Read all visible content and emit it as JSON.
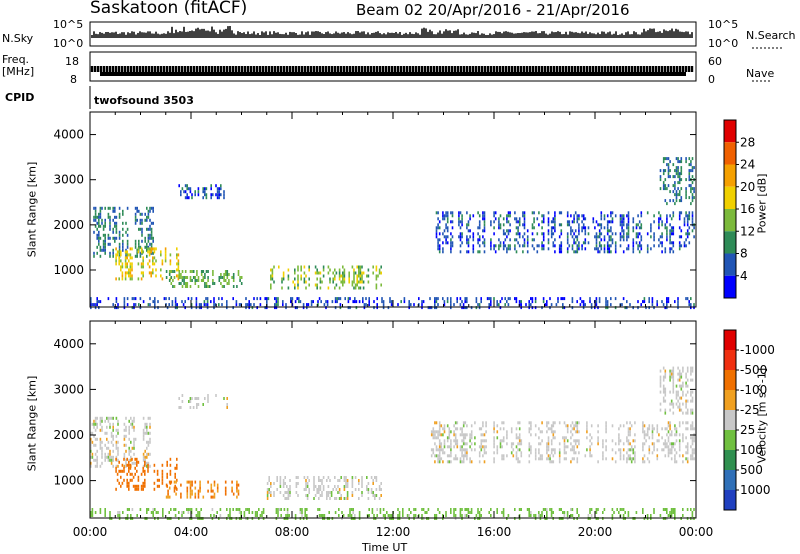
{
  "header": {
    "station": "Saskatoon (fitACF)",
    "beam_range": "Beam 02  20/Apr/2016 - 21/Apr/2016"
  },
  "aux_panels": {
    "nsky_label": "N.Sky",
    "nsky_ticks": [
      "10^5",
      "10^0"
    ],
    "nsearch_label": "N.Search",
    "freq_label_1": "Freq.",
    "freq_label_2": "[MHz]",
    "freq_ticks": [
      "18",
      "8"
    ],
    "nave_ticks": [
      "60",
      "0"
    ],
    "nave_label": "Nave",
    "cpid_label": "CPID",
    "cpid_value": "twofsound 3503"
  },
  "chart_data": [
    {
      "type": "heatmap",
      "title": "Power",
      "xlabel": "Time UT",
      "ylabel": "Slant Range [km]",
      "x_ticks": [
        "00:00",
        "04:00",
        "08:00",
        "12:00",
        "16:00",
        "20:00",
        "00:00"
      ],
      "x_range_hours": [
        0,
        24
      ],
      "y_ticks": [
        1000,
        2000,
        3000,
        4000
      ],
      "ylim": [
        180,
        4500
      ],
      "colorbar_label": "Power [dB]",
      "colorbar_ticks": [
        4,
        8,
        12,
        16,
        20,
        24,
        28
      ],
      "colorbar_colors": [
        "#0000ff",
        "#2155b5",
        "#2e8b57",
        "#7cba3c",
        "#f0d000",
        "#f5a000",
        "#f06000",
        "#e00000"
      ],
      "echo_regions": [
        {
          "t_start": 0.0,
          "t_end": 2.5,
          "range_min": 1300,
          "range_max": 2400,
          "level_db": 8
        },
        {
          "t_start": 1.0,
          "t_end": 3.5,
          "range_min": 800,
          "range_max": 1500,
          "level_db": 18
        },
        {
          "t_start": 3.0,
          "t_end": 6.0,
          "range_min": 650,
          "range_max": 1000,
          "level_db": 12
        },
        {
          "t_start": 7.0,
          "t_end": 11.5,
          "range_min": 600,
          "range_max": 1100,
          "level_db": 14
        },
        {
          "t_start": 3.5,
          "t_end": 5.5,
          "range_min": 2600,
          "range_max": 2900,
          "level_db": 6
        },
        {
          "t_start": 13.5,
          "t_end": 24.0,
          "range_min": 1400,
          "range_max": 2300,
          "level_db": 6
        },
        {
          "t_start": 22.5,
          "t_end": 24.0,
          "range_min": 2500,
          "range_max": 3500,
          "level_db": 8
        },
        {
          "t_start": 0.0,
          "t_end": 24.0,
          "range_min": 180,
          "range_max": 400,
          "level_db": 5
        }
      ]
    },
    {
      "type": "heatmap",
      "title": "Velocity",
      "xlabel": "Time UT",
      "ylabel": "Slant Range [km]",
      "x_ticks": [
        "00:00",
        "04:00",
        "08:00",
        "12:00",
        "16:00",
        "20:00",
        "00:00"
      ],
      "x_range_hours": [
        0,
        24
      ],
      "y_ticks": [
        1000,
        2000,
        3000,
        4000
      ],
      "ylim": [
        180,
        4500
      ],
      "colorbar_label": "Velocity [m s^-1]",
      "colorbar_ticks": [
        1000,
        500,
        100,
        25,
        -25,
        -100,
        -500,
        -1000
      ],
      "colorbar_colors": [
        "#2040c0",
        "#3070b8",
        "#309050",
        "#70c040",
        "#c8c8c8",
        "#f0a020",
        "#f07000",
        "#f03010",
        "#e00000"
      ],
      "echo_regions": [
        {
          "t_start": 0.0,
          "t_end": 2.5,
          "range_min": 1300,
          "range_max": 2400,
          "velocity": 0
        },
        {
          "t_start": 1.0,
          "t_end": 3.5,
          "range_min": 800,
          "range_max": 1500,
          "velocity": -300
        },
        {
          "t_start": 3.0,
          "t_end": 6.0,
          "range_min": 650,
          "range_max": 1000,
          "velocity": -100
        },
        {
          "t_start": 7.0,
          "t_end": 11.5,
          "range_min": 600,
          "range_max": 1100,
          "velocity": 0
        },
        {
          "t_start": 3.5,
          "t_end": 5.5,
          "range_min": 2600,
          "range_max": 2900,
          "velocity": 0
        },
        {
          "t_start": 13.5,
          "t_end": 24.0,
          "range_min": 1400,
          "range_max": 2300,
          "velocity": 0
        },
        {
          "t_start": 22.5,
          "t_end": 24.0,
          "range_min": 2500,
          "range_max": 3500,
          "velocity": 0
        },
        {
          "t_start": 0.0,
          "t_end": 24.0,
          "range_min": 180,
          "range_max": 400,
          "velocity": 50
        }
      ]
    }
  ]
}
